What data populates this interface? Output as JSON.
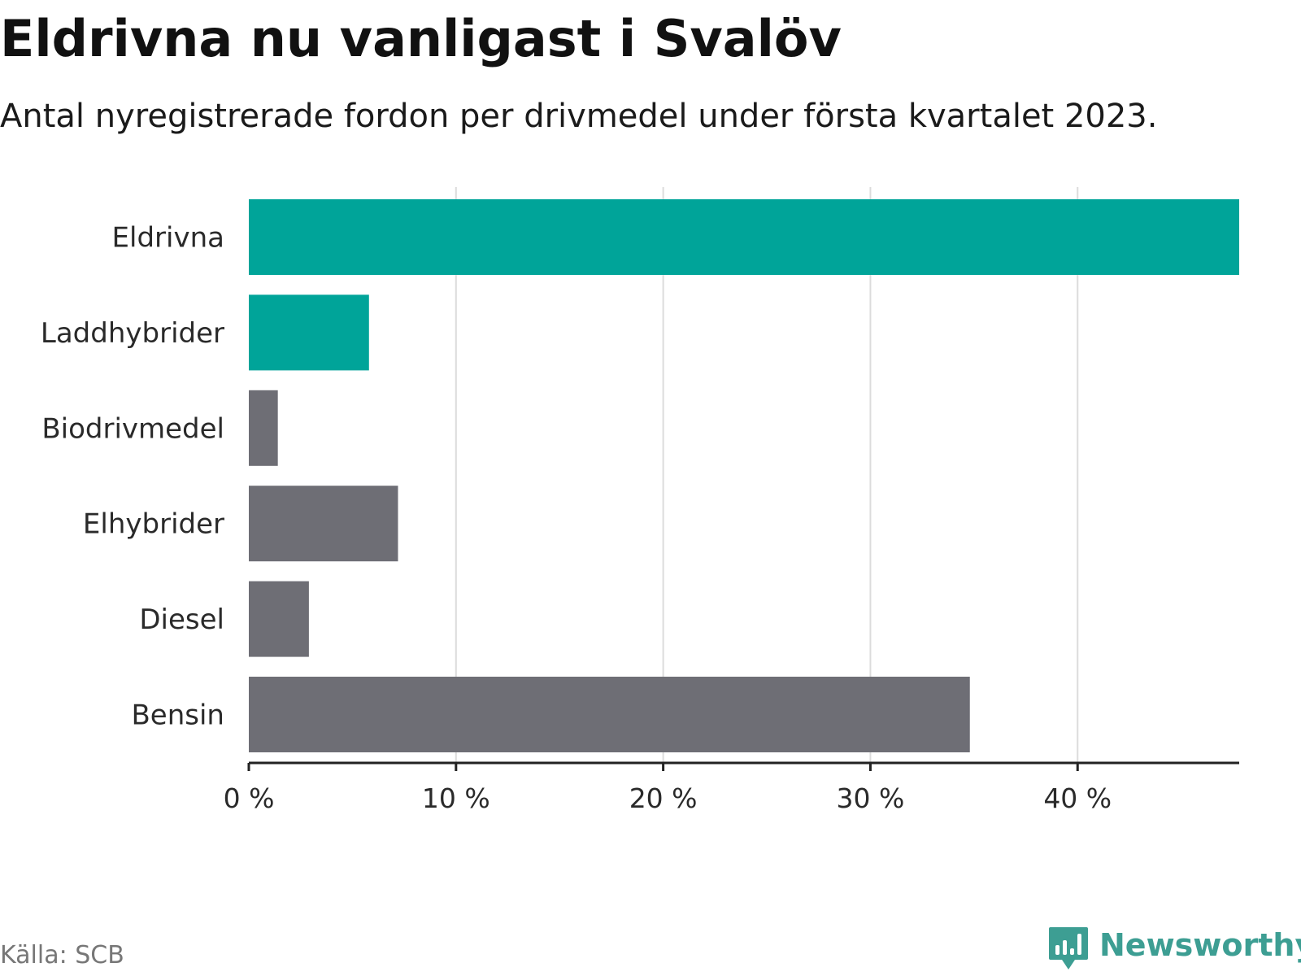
{
  "header": {
    "title": "Eldrivna nu vanligast i Svalöv",
    "subtitle": "Antal nyregistrerade fordon per drivmedel under första kvartalet 2023."
  },
  "footer": {
    "source": "Källa: SCB",
    "logo_text": "Newsworthy"
  },
  "colors": {
    "highlight": "#00a499",
    "default": "#6e6e75",
    "grid": "#dcdcdc",
    "axis": "#222222",
    "logo": "#3d9e93"
  },
  "chart_data": {
    "type": "bar",
    "orientation": "horizontal",
    "categories": [
      "Eldrivna",
      "Laddhybrider",
      "Biodrivmedel",
      "Elhybrider",
      "Diesel",
      "Bensin"
    ],
    "values": [
      47.8,
      5.8,
      1.4,
      7.2,
      2.9,
      34.8
    ],
    "highlighted": [
      true,
      true,
      false,
      false,
      false,
      false
    ],
    "xlim": [
      0,
      47.8
    ],
    "xticks": [
      0,
      10,
      20,
      30,
      40
    ],
    "xtick_labels": [
      "0 %",
      "10 %",
      "20 %",
      "30 %",
      "40 %"
    ],
    "grid": true,
    "unit": "%"
  }
}
